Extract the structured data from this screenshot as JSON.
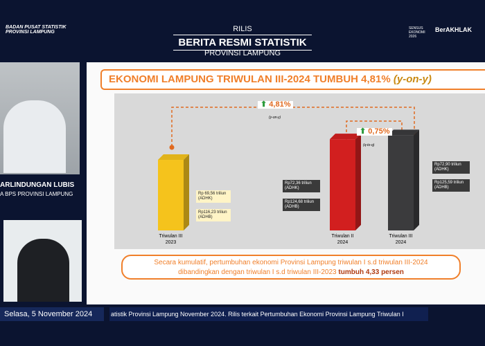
{
  "header": {
    "org": "BADAN PUSAT STATISTIK PROVINSI LAMPUNG",
    "kicker": "RILIS",
    "title": "BERITA RESMI STATISTIK",
    "subtitle": "PROVINSI LAMPUNG",
    "logo_sensus": "SENSUS EKONOMI 2026",
    "logo_berakhlak": "BerAKHLAK"
  },
  "speaker": {
    "name": "ARLINDUNGAN LUBIS",
    "role": "A BPS PROVINSI LAMPUNG"
  },
  "slide": {
    "title": "EKONOMI LAMPUNG TRIWULAN III-2024 TUMBUH 4,81%",
    "title_note": "(y-on-y)",
    "growth": [
      {
        "label": "4,81%",
        "note": "(y-on-y)"
      },
      {
        "label": "0,75%",
        "note": "(q-to-q)"
      }
    ],
    "summary": "Secara kumulatif, pertumbuhan ekonomi Provinsi Lampung triwulan I s.d triwulan III-2024 dibandingkan dengan triwulan I s.d triwulan III-2023",
    "summary_bold": "tumbuh 4,33 persen"
  },
  "chart_data": {
    "type": "bar",
    "categories": [
      "Triwulan III 2023",
      "Triwulan II 2024",
      "Triwulan III 2024"
    ],
    "colors": [
      "#f5c31c",
      "#d21f1f",
      "#3b3b3d"
    ],
    "ylim": [
      60,
      75
    ],
    "series": [
      {
        "name": "ADHK",
        "values": [
          69.56,
          72.36,
          72.9
        ],
        "value_labels": [
          "Rp 69,56 triliun (ADHK)",
          "Rp72,36 triliun (ADHK)",
          "Rp72,90 triliun (ADHK)"
        ]
      },
      {
        "name": "ADHB",
        "values": [
          116.23,
          124.68,
          125.59
        ],
        "value_labels": [
          "Rp116,23 triliun (ADHB)",
          "Rp124,68 triliun (ADHB)",
          "Rp125,59 triliun (ADHB)"
        ]
      }
    ]
  },
  "footer": {
    "date": "Selasa, 5 November 2024",
    "ticker": "atistik Provinsi Lampung November 2024. Rilis terkait Pertumbuhan Ekonomi Provinsi Lampung Triwulan I"
  }
}
